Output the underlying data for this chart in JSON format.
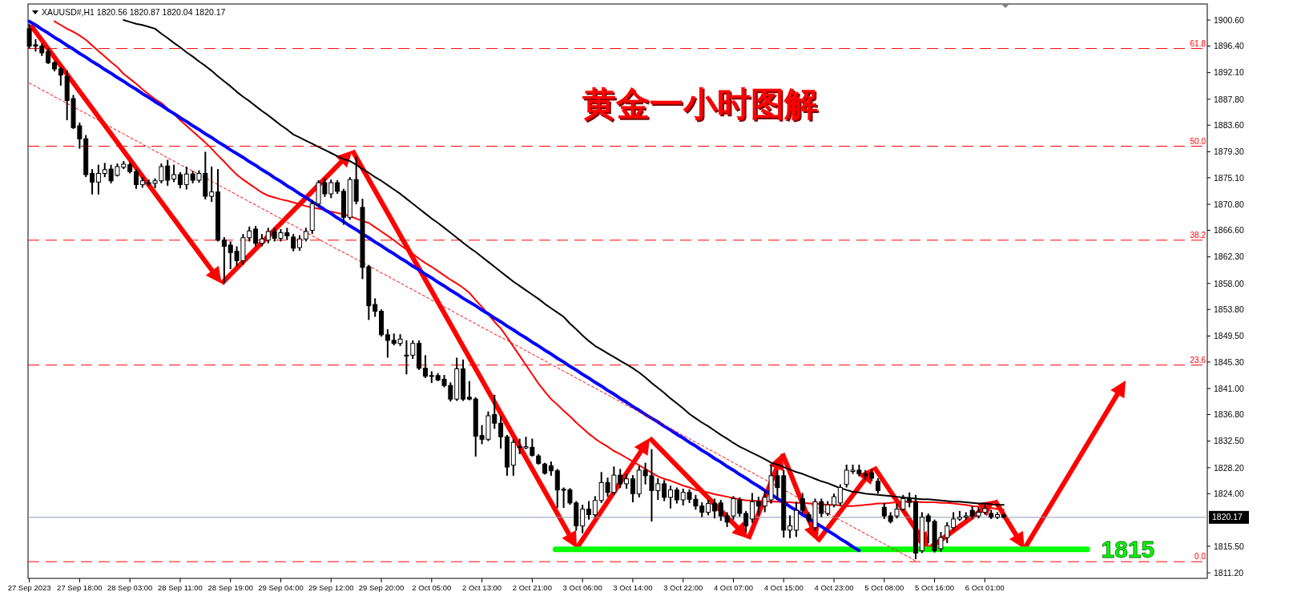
{
  "chart_data": {
    "type": "candlestick",
    "title": "黄金一小时图解",
    "color": "#000000",
    "annotations": [
      "XAUUSD#,H1  1820.56 1820.87 1820.04 1820.17",
      {
        "text": "61.8",
        "y": 1896.0
      },
      {
        "text": "50.0",
        "y": 1880.2
      },
      {
        "text": "38.2",
        "y": 1865.0
      },
      {
        "text": "23.6",
        "y": 1844.8
      },
      {
        "text": "0.0",
        "y": 1813.0
      }
    ],
    "categories": [
      "27 Sep 2023",
      null,
      null,
      null,
      null,
      null,
      null,
      null,
      "27 Sep 18:00",
      null,
      null,
      null,
      null,
      null,
      null,
      null,
      "28 Sep 03:00",
      null,
      null,
      null,
      null,
      null,
      null,
      null,
      "28 Sep 11:00",
      null,
      null,
      null,
      null,
      null,
      null,
      null,
      "28 Sep 19:00",
      null,
      null,
      null,
      null,
      null,
      null,
      null,
      "29 Sep 04:00",
      null,
      null,
      null,
      null,
      null,
      null,
      null,
      "29 Sep 12:00",
      null,
      null,
      null,
      null,
      null,
      null,
      null,
      "29 Sep 20:00",
      null,
      null,
      null,
      null,
      null,
      null,
      null,
      "2 Oct 05:00",
      null,
      null,
      null,
      null,
      null,
      null,
      null,
      "2 Oct 13:00",
      null,
      null,
      null,
      null,
      null,
      null,
      null,
      "2 Oct 21:00",
      null,
      null,
      null,
      null,
      null,
      null,
      null,
      "3 Oct 06:00",
      null,
      null,
      null,
      null,
      null,
      null,
      null,
      "3 Oct 14:00",
      null,
      null,
      null,
      null,
      null,
      null,
      null,
      "3 Oct 22:00",
      null,
      null,
      null,
      null,
      null,
      null,
      null,
      "4 Oct 07:00",
      null,
      null,
      null,
      null,
      null,
      null,
      null,
      "4 Oct 15:00",
      null,
      null,
      null,
      null,
      null,
      null,
      null,
      "4 Oct 23:00",
      null,
      null,
      null,
      null,
      null,
      null,
      null,
      "5 Oct 08:00",
      null,
      null,
      null,
      null,
      null,
      null,
      null,
      "5 Oct 16:00",
      null,
      null,
      null,
      null,
      null,
      null,
      null,
      "6 Oct 01:00",
      null,
      null,
      null,
      null,
      null,
      null,
      null,
      null,
      null,
      null,
      null,
      null,
      null,
      null,
      null,
      null,
      null,
      null,
      null,
      null,
      null,
      null,
      null,
      null,
      null,
      null,
      null,
      null,
      null,
      null,
      null,
      null,
      null,
      null,
      null
    ],
    "ylim": [
      1810.3,
      1903.2
    ],
    "yticks": [
      {
        "value": 1900.6,
        "label": "1900.60"
      },
      {
        "value": 1896.4,
        "label": "1896.40"
      },
      {
        "value": 1892.1,
        "label": "1892.10"
      },
      {
        "value": 1887.8,
        "label": "1887.80"
      },
      {
        "value": 1883.6,
        "label": "1883.60"
      },
      {
        "value": 1879.3,
        "label": "1879.30"
      },
      {
        "value": 1875.1,
        "label": "1875.10"
      },
      {
        "value": 1870.8,
        "label": "1870.80"
      },
      {
        "value": 1866.6,
        "label": "1866.60"
      },
      {
        "value": 1862.3,
        "label": "1862.30"
      },
      {
        "value": 1858,
        "label": "1858.00"
      },
      {
        "value": 1853.8,
        "label": "1853.80"
      },
      {
        "value": 1849.5,
        "label": "1849.50"
      },
      {
        "value": 1845.3,
        "label": "1845.30"
      },
      {
        "value": 1841,
        "label": "1841.00"
      },
      {
        "value": 1836.8,
        "label": "1836.80"
      },
      {
        "value": 1832.5,
        "label": "1832.50"
      },
      {
        "value": 1828.2,
        "label": "1828.20"
      },
      {
        "value": 1824,
        "label": "1824.00"
      },
      {
        "value": 1815.5,
        "label": "1815.50"
      },
      {
        "value": 1811.2,
        "label": "1811.20"
      }
    ],
    "ohlc": [
      [
        1899.2,
        1900.0,
        1896.0,
        1896.4
      ],
      [
        1896.6,
        1897.5,
        1895.5,
        1896.4
      ],
      [
        1896.4,
        1896.8,
        1894.8,
        1895.3
      ],
      [
        1895.5,
        1896.0,
        1893.5,
        1893.7
      ],
      [
        1893.7,
        1894.0,
        1892.3,
        1892.7
      ],
      [
        1892.7,
        1893.0,
        1890.0,
        1891.7
      ],
      [
        1891.5,
        1892.5,
        1884.4,
        1887.6
      ],
      [
        1887.9,
        1888.5,
        1883.0,
        1883.2
      ],
      [
        1883.5,
        1884.0,
        1879.8,
        1881.4
      ],
      [
        1881.4,
        1882.0,
        1875.2,
        1875.6
      ],
      [
        1875.8,
        1876.5,
        1872.4,
        1874.4
      ],
      [
        1874.4,
        1877.2,
        1872.4,
        1875.8
      ],
      [
        1875.8,
        1877.5,
        1875.2,
        1876.4
      ],
      [
        1876.5,
        1877.2,
        1874.2,
        1874.6
      ],
      [
        1875.5,
        1877.4,
        1875.3,
        1876.9
      ],
      [
        1876.8,
        1877.8,
        1876.5,
        1877.3
      ],
      [
        1877.2,
        1877.6,
        1875.8,
        1876.1
      ],
      [
        1876.1,
        1876.5,
        1873.3,
        1874.0
      ],
      [
        1874.0,
        1875.2,
        1873.5,
        1874.6
      ],
      [
        1874.2,
        1874.8,
        1873.8,
        1874.3
      ],
      [
        1874.2,
        1875.0,
        1873.4,
        1874.6
      ],
      [
        1874.6,
        1877.4,
        1874.2,
        1876.9
      ],
      [
        1877.0,
        1878.0,
        1873.8,
        1874.7
      ],
      [
        1874.9,
        1877.2,
        1874.4,
        1875.6
      ],
      [
        1875.6,
        1876.0,
        1873.4,
        1874.0
      ],
      [
        1874.0,
        1876.9,
        1873.2,
        1875.7
      ],
      [
        1875.7,
        1876.2,
        1874.2,
        1874.7
      ],
      [
        1874.7,
        1876.3,
        1874.3,
        1875.8
      ],
      [
        1875.8,
        1879.3,
        1871.6,
        1872.1
      ],
      [
        1872.1,
        1876.9,
        1871.2,
        1872.8
      ],
      [
        1872.8,
        1876.5,
        1864.8,
        1865.0
      ],
      [
        1865.0,
        1865.5,
        1858.0,
        1864.0
      ],
      [
        1864.2,
        1864.8,
        1860.3,
        1863.0
      ],
      [
        1863.2,
        1864.0,
        1860.8,
        1861.7
      ],
      [
        1861.7,
        1866.0,
        1861.0,
        1865.4
      ],
      [
        1865.4,
        1867.2,
        1864.8,
        1866.5
      ],
      [
        1866.8,
        1867.3,
        1864.0,
        1864.5
      ],
      [
        1864.5,
        1866.0,
        1864.0,
        1865.2
      ],
      [
        1865.0,
        1867.0,
        1864.5,
        1866.4
      ],
      [
        1866.4,
        1867.0,
        1864.8,
        1865.3
      ],
      [
        1865.3,
        1866.8,
        1864.8,
        1866.2
      ],
      [
        1866.2,
        1867.0,
        1865.0,
        1865.7
      ],
      [
        1865.5,
        1866.0,
        1863.2,
        1863.7
      ],
      [
        1863.8,
        1865.8,
        1863.3,
        1865.2
      ],
      [
        1865.2,
        1867.0,
        1864.8,
        1866.4
      ],
      [
        1866.6,
        1871.5,
        1866.0,
        1870.9
      ],
      [
        1870.9,
        1874.7,
        1870.5,
        1874.3
      ],
      [
        1874.3,
        1875.0,
        1872.0,
        1872.5
      ],
      [
        1872.5,
        1874.8,
        1871.8,
        1874.3
      ],
      [
        1874.3,
        1874.7,
        1872.5,
        1872.9
      ],
      [
        1872.9,
        1873.3,
        1867.5,
        1868.7
      ],
      [
        1868.7,
        1875.2,
        1868.3,
        1874.8
      ],
      [
        1874.8,
        1878.5,
        1870.8,
        1871.3
      ],
      [
        1870.3,
        1871.7,
        1858.7,
        1860.6
      ],
      [
        1860.7,
        1861.0,
        1852.1,
        1854.4
      ],
      [
        1854.6,
        1855.6,
        1852.6,
        1853.5
      ],
      [
        1853.5,
        1853.8,
        1849.4,
        1849.7
      ],
      [
        1849.7,
        1850.6,
        1846.0,
        1848.8
      ],
      [
        1848.8,
        1849.9,
        1848.0,
        1848.3
      ],
      [
        1848.3,
        1849.8,
        1847.9,
        1849.0
      ],
      [
        1846.3,
        1848.8,
        1843.3,
        1846.4
      ],
      [
        1846.4,
        1848.8,
        1845.8,
        1848.3
      ],
      [
        1848.3,
        1848.8,
        1844.0,
        1844.3
      ],
      [
        1844.3,
        1846.4,
        1842.7,
        1843.0
      ],
      [
        1843.0,
        1843.8,
        1841.9,
        1843.1
      ],
      [
        1843.1,
        1843.5,
        1842.2,
        1842.4
      ],
      [
        1842.5,
        1843.2,
        1841.2,
        1841.5
      ],
      [
        1841.5,
        1842.0,
        1838.9,
        1839.3
      ],
      [
        1839.3,
        1846.0,
        1839.0,
        1844.2
      ],
      [
        1844.2,
        1845.7,
        1839.0,
        1839.3
      ],
      [
        1839.6,
        1842.2,
        1839.1,
        1839.3
      ],
      [
        1839.3,
        1839.6,
        1830.0,
        1833.3
      ],
      [
        1833.4,
        1835.1,
        1832.0,
        1832.8
      ],
      [
        1832.8,
        1837.3,
        1832.5,
        1836.6
      ],
      [
        1836.8,
        1840.0,
        1834.5,
        1835.4
      ],
      [
        1835.4,
        1836.5,
        1831.3,
        1833.2
      ],
      [
        1833.2,
        1833.5,
        1826.9,
        1828.3
      ],
      [
        1828.6,
        1832.8,
        1826.9,
        1832.3
      ],
      [
        1831.5,
        1832.9,
        1830.4,
        1831.6
      ],
      [
        1831.4,
        1833.2,
        1831.2,
        1831.6
      ],
      [
        1831.5,
        1832.9,
        1830.0,
        1830.2
      ],
      [
        1830.1,
        1830.4,
        1828.7,
        1828.9
      ],
      [
        1828.8,
        1829.0,
        1827.1,
        1827.3
      ],
      [
        1828.5,
        1829.2,
        1826.9,
        1827.7
      ],
      [
        1827.7,
        1828.0,
        1821.7,
        1824.6
      ],
      [
        1824.7,
        1825.0,
        1821.7,
        1824.6
      ],
      [
        1824.6,
        1824.9,
        1822.2,
        1822.5
      ],
      [
        1822.5,
        1822.8,
        1818.0,
        1818.8
      ],
      [
        1818.8,
        1822.2,
        1817.6,
        1821.5
      ],
      [
        1821.5,
        1822.8,
        1819.8,
        1820.6
      ],
      [
        1820.6,
        1823.6,
        1820.2,
        1822.9
      ],
      [
        1822.9,
        1827.5,
        1822.5,
        1825.8
      ],
      [
        1825.8,
        1826.6,
        1823.5,
        1824.2
      ],
      [
        1824.2,
        1828.4,
        1823.8,
        1827.0
      ],
      [
        1827.0,
        1828.0,
        1824.9,
        1825.6
      ],
      [
        1825.6,
        1827.2,
        1824.8,
        1826.4
      ],
      [
        1826.4,
        1827.0,
        1822.6,
        1824.0
      ],
      [
        1824.0,
        1828.5,
        1823.4,
        1827.8
      ],
      [
        1827.8,
        1829.0,
        1825.5,
        1826.9
      ],
      [
        1826.9,
        1831.2,
        1819.5,
        1824.5
      ],
      [
        1824.5,
        1826.5,
        1823.0,
        1825.6
      ],
      [
        1825.6,
        1826.2,
        1822.8,
        1823.4
      ],
      [
        1823.4,
        1825.3,
        1821.6,
        1824.6
      ],
      [
        1824.6,
        1825.0,
        1822.4,
        1823.0
      ],
      [
        1823.0,
        1824.8,
        1822.1,
        1824.2
      ],
      [
        1824.2,
        1824.7,
        1822.5,
        1823.1
      ],
      [
        1823.1,
        1823.8,
        1821.4,
        1822.0
      ],
      [
        1822.0,
        1822.6,
        1820.2,
        1821.0
      ],
      [
        1821.0,
        1823.0,
        1820.5,
        1822.4
      ],
      [
        1822.4,
        1823.2,
        1820.0,
        1821.2
      ],
      [
        1822.5,
        1823.0,
        1819.6,
        1820.4
      ],
      [
        1820.4,
        1821.0,
        1818.6,
        1819.4
      ],
      [
        1820.4,
        1823.6,
        1819.8,
        1823.2
      ],
      [
        1823.0,
        1823.4,
        1820.3,
        1820.8
      ],
      [
        1820.8,
        1821.2,
        1817.8,
        1818.8
      ],
      [
        1819.9,
        1824.1,
        1819.3,
        1822.7
      ],
      [
        1822.7,
        1823.5,
        1820.5,
        1822.0
      ],
      [
        1822.0,
        1824.5,
        1821.0,
        1823.4
      ],
      [
        1823.0,
        1828.7,
        1822.4,
        1826.9
      ],
      [
        1826.9,
        1827.8,
        1823.0,
        1825.0
      ],
      [
        1826.9,
        1827.8,
        1816.9,
        1818.1
      ],
      [
        1818.1,
        1820.5,
        1816.8,
        1818.8
      ],
      [
        1818.1,
        1822.7,
        1817.0,
        1821.3
      ],
      [
        1823.2,
        1824.1,
        1820.8,
        1821.3
      ],
      [
        1820.6,
        1821.0,
        1819.3,
        1819.7
      ],
      [
        1818.5,
        1823.2,
        1818.0,
        1822.7
      ],
      [
        1822.7,
        1823.2,
        1820.2,
        1820.8
      ],
      [
        1820.8,
        1822.8,
        1820.4,
        1822.2
      ],
      [
        1822.2,
        1824.0,
        1821.8,
        1823.5
      ],
      [
        1822.5,
        1825.5,
        1822.0,
        1825.0
      ],
      [
        1825.5,
        1828.7,
        1825.0,
        1827.8
      ],
      [
        1827.6,
        1828.7,
        1827.2,
        1827.8
      ],
      [
        1827.8,
        1828.7,
        1826.8,
        1827.2
      ],
      [
        1827.2,
        1827.8,
        1826.2,
        1826.9
      ],
      [
        1827.4,
        1828.0,
        1826.0,
        1826.5
      ],
      [
        1826.0,
        1826.5,
        1824.0,
        1824.5
      ],
      [
        1821.8,
        1822.5,
        1819.9,
        1820.4
      ],
      [
        1820.4,
        1821.0,
        1819.2,
        1819.5
      ],
      [
        1820.4,
        1822.4,
        1820.0,
        1821.5
      ],
      [
        1821.5,
        1823.8,
        1821.2,
        1823.2
      ],
      [
        1823.2,
        1824.2,
        1821.8,
        1822.6
      ],
      [
        1822.7,
        1823.8,
        1813.4,
        1814.4
      ],
      [
        1814.8,
        1821.0,
        1814.4,
        1820.2
      ],
      [
        1820.4,
        1820.8,
        1816.0,
        1819.5
      ],
      [
        1819.5,
        1819.8,
        1814.5,
        1814.8
      ],
      [
        1815.1,
        1817.8,
        1814.6,
        1816.9
      ],
      [
        1816.9,
        1819.4,
        1816.0,
        1818.8
      ],
      [
        1818.5,
        1821.0,
        1818.0,
        1819.9
      ],
      [
        1819.9,
        1821.2,
        1819.6,
        1820.2
      ],
      [
        1820.2,
        1821.0,
        1819.8,
        1820.4
      ],
      [
        1821.3,
        1822.0,
        1820.0,
        1820.4
      ],
      [
        1820.4,
        1821.8,
        1820.0,
        1821.0
      ],
      [
        1821.0,
        1822.2,
        1820.6,
        1821.6
      ],
      [
        1820.8,
        1821.4,
        1819.9,
        1820.2
      ],
      [
        1820.2,
        1821.0,
        1819.9,
        1820.6
      ],
      [
        1820.56,
        1820.87,
        1820.04,
        1820.17
      ],
      null,
      null,
      null,
      null,
      null,
      null,
      null,
      null,
      null,
      null,
      null,
      null,
      null,
      null,
      null,
      null,
      null,
      null,
      null,
      null,
      null,
      null,
      null,
      null,
      null,
      null,
      null,
      null,
      null,
      null,
      null,
      null
    ],
    "series": [
      {
        "type": "line",
        "color": "#000000",
        "values": [
          null,
          null,
          null,
          null,
          null,
          null,
          null,
          null,
          null,
          null,
          null,
          null,
          null,
          null,
          null,
          1900.6,
          1900.3,
          1900.0,
          1899.8,
          1899.5,
          1899.2,
          1898.4,
          1897.7,
          1896.9,
          1896.2,
          1895.4,
          1894.7,
          1893.9,
          1893.2,
          1892.4,
          1891.5,
          1890.7,
          1889.9,
          1889.0,
          1888.2,
          1887.5,
          1886.7,
          1885.9,
          1885.2,
          1884.4,
          1883.6,
          1882.9,
          1882.1,
          1881.6,
          1881.1,
          1880.6,
          1880.1,
          1879.6,
          1879.1,
          1878.6,
          1878.1,
          1877.8,
          1877.2,
          1876.5,
          1875.9,
          1875.2,
          1874.6,
          1873.9,
          1873.2,
          1872.5,
          1871.7,
          1870.9,
          1870.1,
          1869.3,
          1868.5,
          1867.8,
          1867.0,
          1866.2,
          1865.4,
          1864.6,
          1863.8,
          1863.1,
          1862.3,
          1861.5,
          1860.7,
          1859.9,
          1859.1,
          1858.3,
          1857.6,
          1856.9,
          1856.2,
          1855.5,
          1854.7,
          1854.0,
          1853.3,
          1852.6,
          1851.5,
          1850.6,
          1849.6,
          1848.7,
          1847.9,
          1847.3,
          1846.7,
          1846.1,
          1845.5,
          1844.9,
          1844.3,
          1843.6,
          1842.8,
          1841.9,
          1841.1,
          1840.3,
          1839.4,
          1838.6,
          1837.8,
          1836.9,
          1836.2,
          1835.5,
          1834.9,
          1834.2,
          1833.5,
          1832.9,
          1832.2,
          1831.6,
          1831.1,
          1830.6,
          1830.1,
          1829.6,
          1829.0,
          1828.7,
          1828.3,
          1827.9,
          1827.5,
          1827.2,
          1826.8,
          1826.4,
          1826.0,
          1825.7,
          1825.3,
          1824.9,
          1824.6,
          1824.3,
          1824.2,
          1824.0,
          1823.9,
          1823.8,
          1823.7,
          1823.6,
          1823.5,
          1823.4,
          1823.3,
          1823.2,
          1823.1,
          1823.1,
          1823.0,
          1822.9,
          1822.8,
          1822.7,
          1822.7,
          1822.6,
          1822.5,
          1822.4,
          1822.4,
          1822.3,
          1822.2,
          1822.2,
          null,
          null,
          null,
          null,
          null,
          null,
          null,
          null,
          null,
          null,
          null,
          null,
          null,
          null,
          null,
          null,
          null,
          null,
          null,
          null,
          null,
          null,
          null,
          null,
          null,
          null,
          null,
          null,
          null,
          null,
          null,
          null
        ]
      },
      {
        "type": "line",
        "color": "#ff0000",
        "values": [
          null,
          null,
          null,
          null,
          1900.4,
          1899.8,
          1899.2,
          1898.7,
          1898.1,
          1897.4,
          1896.5,
          1895.6,
          1894.7,
          1893.8,
          1893.0,
          1891.9,
          1891.1,
          1890.3,
          1889.4,
          1888.6,
          1887.8,
          1887.2,
          1886.3,
          1885.4,
          1884.4,
          1883.5,
          1882.6,
          1881.7,
          1880.8,
          1879.8,
          1878.7,
          1877.7,
          1876.6,
          1875.6,
          1874.8,
          1874.1,
          1873.4,
          1872.7,
          1872.2,
          1871.9,
          1871.6,
          1871.4,
          1871.1,
          1870.8,
          1870.5,
          1870.3,
          1870.1,
          1869.9,
          1869.6,
          1869.4,
          1869.2,
          1868.9,
          1868.5,
          1868.1,
          1867.8,
          1867.1,
          1866.4,
          1865.7,
          1865.0,
          1864.2,
          1863.5,
          1862.8,
          1862.0,
          1861.3,
          1860.7,
          1860.0,
          1859.3,
          1858.6,
          1858.0,
          1857.3,
          1856.5,
          1855.3,
          1854.2,
          1853.0,
          1851.8,
          1850.7,
          1849.3,
          1847.8,
          1846.3,
          1844.8,
          1843.3,
          1841.8,
          1840.5,
          1839.3,
          1838.4,
          1837.4,
          1836.5,
          1835.5,
          1834.6,
          1833.7,
          1832.9,
          1832.2,
          1831.6,
          1830.9,
          1830.4,
          1829.8,
          1829.2,
          1828.6,
          1828.0,
          1827.4,
          1826.8,
          1826.4,
          1826.1,
          1825.7,
          1825.3,
          1825.0,
          1824.6,
          1824.4,
          1824.2,
          1823.9,
          1823.7,
          1823.5,
          1823.3,
          1823.1,
          1822.9,
          1822.9,
          1822.8,
          1822.8,
          1822.7,
          1822.7,
          1822.6,
          1822.6,
          1822.5,
          1822.5,
          1822.4,
          1822.4,
          1822.3,
          1822.2,
          1822.2,
          1822.1,
          1822.0,
          1822.0,
          1822.1,
          1822.2,
          1822.3,
          1822.4,
          1822.4,
          1822.5,
          1822.6,
          1822.7,
          1822.7,
          1822.7,
          1822.6,
          1822.6,
          1822.6,
          1822.5,
          1822.5,
          1822.4,
          1822.3,
          1822.2,
          1822.0,
          1821.9,
          1821.8,
          1821.7,
          1821.5,
          1821.4,
          null,
          null,
          null,
          null,
          null,
          null,
          null,
          null,
          null,
          null,
          null,
          null,
          null,
          null,
          null,
          null,
          null,
          null,
          null,
          null,
          null,
          null,
          null,
          null,
          null,
          null,
          null,
          null,
          null,
          null,
          null,
          null
        ]
      },
      {
        "type": "line",
        "color": "#0000ff",
        "values": [
          1900.4,
          1899.8,
          1899.1,
          1898.5,
          1897.8,
          1897.2,
          1896.5,
          1895.9,
          1895.2,
          1894.6,
          1893.9,
          1893.3,
          1892.6,
          1892.0,
          1891.3,
          1890.7,
          1890.0,
          1889.4,
          1888.7,
          1888.1,
          1887.4,
          1886.8,
          1886.1,
          1885.5,
          1884.8,
          1884.2,
          1883.5,
          1882.9,
          1882.2,
          1881.6,
          1880.9,
          1880.3,
          1879.6,
          1879.0,
          1878.4,
          1877.7,
          1877.1,
          1876.4,
          1875.8,
          1875.1,
          1874.5,
          1873.8,
          1873.2,
          1872.5,
          1871.9,
          1871.2,
          1870.6,
          1869.9,
          1869.3,
          1868.6,
          1868.0,
          1867.3,
          1866.7,
          1866.0,
          1865.4,
          1864.7,
          1864.1,
          1863.4,
          1862.8,
          1862.1,
          1861.5,
          1860.8,
          1860.2,
          1859.5,
          1858.9,
          1858.2,
          1857.6,
          1856.9,
          1856.3,
          1855.6,
          1855.0,
          1854.4,
          1853.7,
          1853.1,
          1852.4,
          1851.8,
          1851.1,
          1850.5,
          1849.8,
          1849.2,
          1848.5,
          1847.9,
          1847.2,
          1846.6,
          1845.9,
          1845.3,
          1844.6,
          1844.0,
          1843.3,
          1842.7,
          1842.0,
          1841.4,
          1840.7,
          1840.1,
          1839.4,
          1838.8,
          1838.1,
          1837.5,
          1836.8,
          1836.2,
          1835.6,
          1834.9,
          1834.3,
          1833.6,
          1833.0,
          1832.3,
          1831.7,
          1831.0,
          1830.4,
          1829.7,
          1829.1,
          1828.4,
          1827.8,
          1827.1,
          1826.5,
          1825.8,
          1825.2,
          1824.5,
          1823.9,
          1823.2,
          1822.6,
          1821.9,
          1821.3,
          1820.6,
          1820.0,
          1819.3,
          1818.7,
          1818.0,
          1817.4,
          1816.7,
          1816.1,
          1815.4,
          1814.8,
          null,
          null,
          null,
          null,
          null,
          null,
          null,
          null,
          null,
          null,
          null,
          null,
          null,
          null,
          null,
          null,
          null,
          null,
          null,
          null,
          null,
          null,
          null,
          null,
          null,
          null,
          null,
          null,
          null,
          null,
          null,
          null,
          null,
          null,
          null,
          null,
          null,
          null,
          null,
          null,
          null,
          null,
          null,
          null,
          null,
          null,
          null,
          null,
          null,
          null,
          null,
          null,
          null,
          null,
          null
        ]
      },
      {
        "type": "line",
        "color": "#ff0000",
        "line_style": "dashed",
        "values": [
          1890.4,
          1889.9,
          1889.3,
          1888.8,
          1888.2,
          1887.7,
          1887.1,
          1886.6,
          1886.0,
          1885.5,
          1884.9,
          1884.4,
          1883.8,
          1883.3,
          1882.7,
          1882.2,
          1881.6,
          1881.1,
          1880.5,
          1880.0,
          1879.4,
          1878.9,
          1878.3,
          1877.8,
          1877.2,
          1876.7,
          1876.2,
          1875.6,
          1875.1,
          1874.5,
          1874.0,
          1873.4,
          1872.9,
          1872.3,
          1871.8,
          1871.2,
          1870.7,
          1870.1,
          1869.6,
          1869.0,
          1868.5,
          1867.9,
          1867.4,
          1866.8,
          1866.3,
          1865.7,
          1865.2,
          1864.6,
          1864.1,
          1863.5,
          1863.0,
          1862.5,
          1861.9,
          1861.4,
          1860.8,
          1860.3,
          1859.7,
          1859.2,
          1858.6,
          1858.1,
          1857.5,
          1857.0,
          1856.4,
          1855.9,
          1855.3,
          1854.8,
          1854.2,
          1853.7,
          1853.1,
          1852.6,
          1852.0,
          1851.5,
          1850.9,
          1850.4,
          1849.8,
          1849.3,
          1848.8,
          1848.2,
          1847.7,
          1847.1,
          1846.6,
          1846.0,
          1845.5,
          1844.9,
          1844.4,
          1843.8,
          1843.3,
          1842.7,
          1842.2,
          1841.6,
          1841.1,
          1840.5,
          1840.0,
          1839.4,
          1838.9,
          1838.3,
          1837.8,
          1837.2,
          1836.7,
          1836.1,
          1835.6,
          1835.1,
          1834.5,
          1834.0,
          1833.4,
          1832.9,
          1832.3,
          1831.8,
          1831.2,
          1830.7,
          1830.1,
          1829.6,
          1829.0,
          1828.5,
          1827.9,
          1827.4,
          1826.8,
          1826.3,
          1825.7,
          1825.2,
          1824.6,
          1824.1,
          1823.5,
          1823.0,
          1822.4,
          1821.9,
          1821.4,
          1820.8,
          1820.3,
          1819.7,
          1819.2,
          1818.6,
          1818.1,
          1817.5,
          1817.0,
          1816.4,
          1815.9,
          1815.3,
          1814.8,
          1814.2,
          1813.7,
          1813.1,
          null,
          null,
          null,
          null,
          null,
          null,
          null,
          null,
          null,
          null,
          null,
          null,
          null,
          null,
          null,
          null,
          null,
          null,
          null,
          null,
          null,
          null,
          null,
          null,
          null,
          null,
          null,
          null,
          null,
          null,
          null,
          null,
          null,
          null,
          null,
          null,
          null,
          null,
          null,
          null,
          null,
          null,
          null,
          null,
          null,
          null
        ]
      }
    ],
    "ref_lines": [
      {
        "axis": "y",
        "value": 1896.0,
        "color": "#ff0000",
        "line_style": "dashed"
      },
      {
        "axis": "y",
        "value": 1880.2,
        "color": "#ff0000",
        "line_style": "dashed"
      },
      {
        "axis": "y",
        "value": 1865.0,
        "color": "#ff0000",
        "line_style": "dashed"
      },
      {
        "axis": "y",
        "value": 1844.8,
        "color": "#ff0000",
        "line_style": "dashed"
      },
      {
        "axis": "y",
        "value": 1813.0,
        "color": "#ff0000",
        "line_style": "dashed"
      },
      {
        "axis": "y",
        "value": 1820.17,
        "label": "1820.17",
        "color": "#8c9bb0",
        "line_style": "solid"
      },
      {
        "axis": "y",
        "value": 1815,
        "label": "1815",
        "color": "#00ff00",
        "line_style": "solid"
      }
    ]
  }
}
